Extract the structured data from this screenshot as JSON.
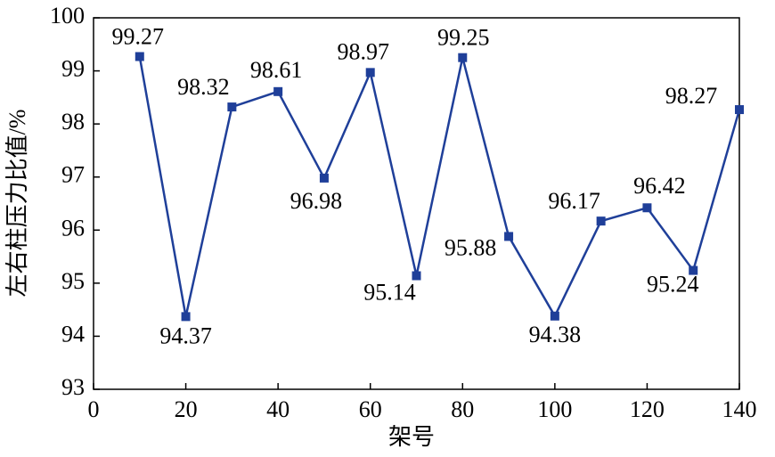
{
  "chart_data": {
    "type": "line",
    "x_label": "架号",
    "y_label": "左右柱压力比值/%",
    "x": [
      10,
      20,
      30,
      40,
      50,
      60,
      70,
      80,
      90,
      100,
      110,
      120,
      130,
      140
    ],
    "series": [
      {
        "color": "#1f3f99",
        "values": [
          99.27,
          94.37,
          98.32,
          98.61,
          96.98,
          98.97,
          95.14,
          99.25,
          95.88,
          94.38,
          96.17,
          96.42,
          95.24,
          98.27
        ]
      }
    ],
    "xlim": [
      0,
      140
    ],
    "xticks": [
      0,
      20,
      40,
      60,
      80,
      100,
      120,
      140
    ],
    "ylim": [
      93,
      100
    ],
    "yticks": [
      93,
      94,
      95,
      96,
      97,
      98,
      99,
      100
    ],
    "grid": false
  }
}
